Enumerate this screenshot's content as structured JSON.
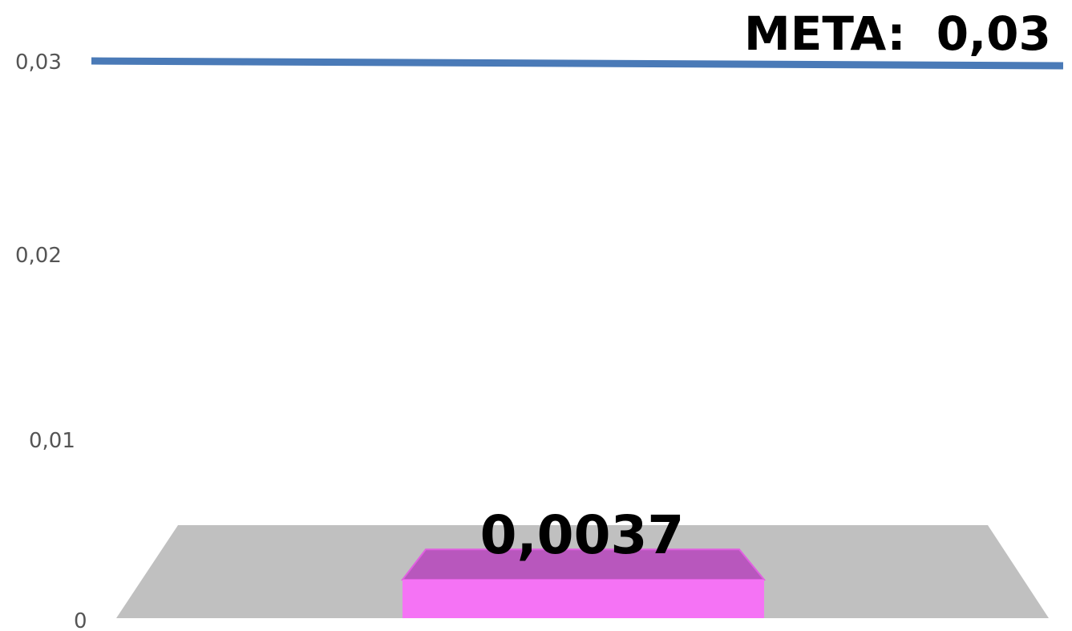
{
  "chart_data": {
    "type": "bar",
    "title": "",
    "xlabel": "",
    "ylabel": "",
    "ylim": [
      0,
      0.03
    ],
    "y_ticks": [
      {
        "value": 0,
        "label": "0"
      },
      {
        "value": 0.01,
        "label": "0,01"
      },
      {
        "value": 0.02,
        "label": "0,02"
      },
      {
        "value": 0.03,
        "label": "0,03"
      }
    ],
    "categories": [
      ""
    ],
    "values": [
      0.0037
    ],
    "data_labels": [
      "0,0037"
    ],
    "target": {
      "value": 0.03,
      "label_prefix": "META:",
      "label_value": "0,03"
    },
    "grid": false,
    "legend": "none",
    "style": "3d",
    "colors": {
      "bar_front": "#f573f5",
      "bar_top": "#b857bd",
      "bar_edge": "#e060e0",
      "floor": "#c0c0c0",
      "target_line": "#4a7ab7",
      "tick_text": "#555555"
    }
  }
}
